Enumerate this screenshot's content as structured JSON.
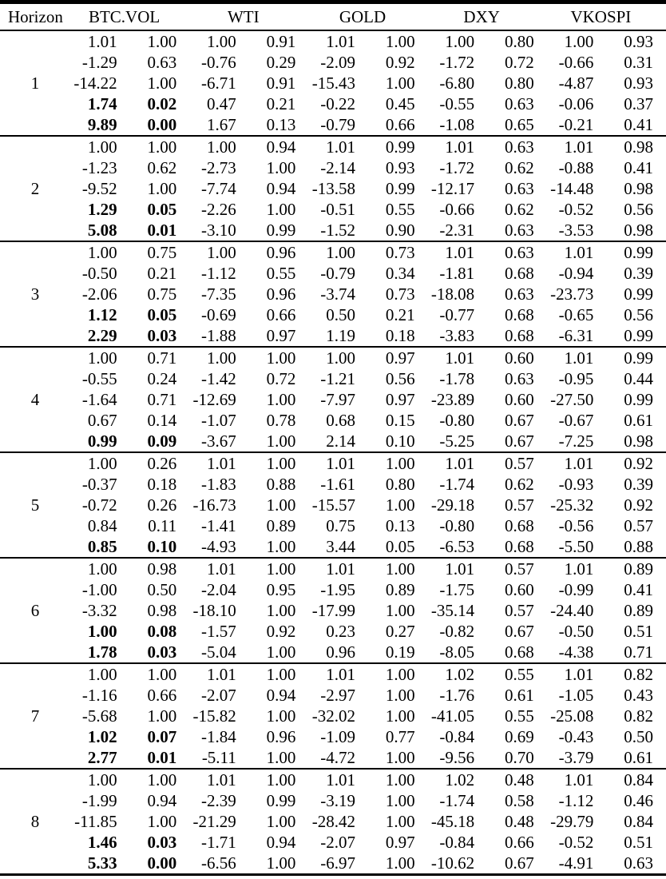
{
  "table": {
    "header": {
      "horizon": "Horizon",
      "series": [
        "BTC.VOL",
        "WTI",
        "GOLD",
        "DXY",
        "VKOSPI"
      ]
    },
    "groups": [
      {
        "horizon": "1",
        "rows": [
          {
            "values": [
              "1.01",
              "1.00",
              "1.00",
              "0.91",
              "1.01",
              "1.00",
              "1.00",
              "0.80",
              "1.00",
              "0.93"
            ],
            "bold": []
          },
          {
            "values": [
              "-1.29",
              "0.63",
              "-0.76",
              "0.29",
              "-2.09",
              "0.92",
              "-1.72",
              "0.72",
              "-0.66",
              "0.31"
            ],
            "bold": []
          },
          {
            "values": [
              "-14.22",
              "1.00",
              "-6.71",
              "0.91",
              "-15.43",
              "1.00",
              "-6.80",
              "0.80",
              "-4.87",
              "0.93"
            ],
            "bold": []
          },
          {
            "values": [
              "1.74",
              "0.02",
              "0.47",
              "0.21",
              "-0.22",
              "0.45",
              "-0.55",
              "0.63",
              "-0.06",
              "0.37"
            ],
            "bold": [
              0,
              1
            ]
          },
          {
            "values": [
              "9.89",
              "0.00",
              "1.67",
              "0.13",
              "-0.79",
              "0.66",
              "-1.08",
              "0.65",
              "-0.21",
              "0.41"
            ],
            "bold": [
              0,
              1
            ]
          }
        ]
      },
      {
        "horizon": "2",
        "rows": [
          {
            "values": [
              "1.00",
              "1.00",
              "1.00",
              "0.94",
              "1.01",
              "0.99",
              "1.01",
              "0.63",
              "1.01",
              "0.98"
            ],
            "bold": []
          },
          {
            "values": [
              "-1.23",
              "0.62",
              "-2.73",
              "1.00",
              "-2.14",
              "0.93",
              "-1.72",
              "0.62",
              "-0.88",
              "0.41"
            ],
            "bold": []
          },
          {
            "values": [
              "-9.52",
              "1.00",
              "-7.74",
              "0.94",
              "-13.58",
              "0.99",
              "-12.17",
              "0.63",
              "-14.48",
              "0.98"
            ],
            "bold": []
          },
          {
            "values": [
              "1.29",
              "0.05",
              "-2.26",
              "1.00",
              "-0.51",
              "0.55",
              "-0.66",
              "0.62",
              "-0.52",
              "0.56"
            ],
            "bold": [
              0,
              1
            ]
          },
          {
            "values": [
              "5.08",
              "0.01",
              "-3.10",
              "0.99",
              "-1.52",
              "0.90",
              "-2.31",
              "0.63",
              "-3.53",
              "0.98"
            ],
            "bold": [
              0,
              1
            ]
          }
        ]
      },
      {
        "horizon": "3",
        "rows": [
          {
            "values": [
              "1.00",
              "0.75",
              "1.00",
              "0.96",
              "1.00",
              "0.73",
              "1.01",
              "0.63",
              "1.01",
              "0.99"
            ],
            "bold": []
          },
          {
            "values": [
              "-0.50",
              "0.21",
              "-1.12",
              "0.55",
              "-0.79",
              "0.34",
              "-1.81",
              "0.68",
              "-0.94",
              "0.39"
            ],
            "bold": []
          },
          {
            "values": [
              "-2.06",
              "0.75",
              "-7.35",
              "0.96",
              "-3.74",
              "0.73",
              "-18.08",
              "0.63",
              "-23.73",
              "0.99"
            ],
            "bold": []
          },
          {
            "values": [
              "1.12",
              "0.05",
              "-0.69",
              "0.66",
              "0.50",
              "0.21",
              "-0.77",
              "0.68",
              "-0.65",
              "0.56"
            ],
            "bold": [
              0,
              1
            ]
          },
          {
            "values": [
              "2.29",
              "0.03",
              "-1.88",
              "0.97",
              "1.19",
              "0.18",
              "-3.83",
              "0.68",
              "-6.31",
              "0.99"
            ],
            "bold": [
              0,
              1
            ]
          }
        ]
      },
      {
        "horizon": "4",
        "rows": [
          {
            "values": [
              "1.00",
              "0.71",
              "1.00",
              "1.00",
              "1.00",
              "0.97",
              "1.01",
              "0.60",
              "1.01",
              "0.99"
            ],
            "bold": []
          },
          {
            "values": [
              "-0.55",
              "0.24",
              "-1.42",
              "0.72",
              "-1.21",
              "0.56",
              "-1.78",
              "0.63",
              "-0.95",
              "0.44"
            ],
            "bold": []
          },
          {
            "values": [
              "-1.64",
              "0.71",
              "-12.69",
              "1.00",
              "-7.97",
              "0.97",
              "-23.89",
              "0.60",
              "-27.50",
              "0.99"
            ],
            "bold": []
          },
          {
            "values": [
              "0.67",
              "0.14",
              "-1.07",
              "0.78",
              "0.68",
              "0.15",
              "-0.80",
              "0.67",
              "-0.67",
              "0.61"
            ],
            "bold": []
          },
          {
            "values": [
              "0.99",
              "0.09",
              "-3.67",
              "1.00",
              "2.14",
              "0.10",
              "-5.25",
              "0.67",
              "-7.25",
              "0.98"
            ],
            "bold": [
              0,
              1
            ]
          }
        ]
      },
      {
        "horizon": "5",
        "rows": [
          {
            "values": [
              "1.00",
              "0.26",
              "1.01",
              "1.00",
              "1.01",
              "1.00",
              "1.01",
              "0.57",
              "1.01",
              "0.92"
            ],
            "bold": []
          },
          {
            "values": [
              "-0.37",
              "0.18",
              "-1.83",
              "0.88",
              "-1.61",
              "0.80",
              "-1.74",
              "0.62",
              "-0.93",
              "0.39"
            ],
            "bold": []
          },
          {
            "values": [
              "-0.72",
              "0.26",
              "-16.73",
              "1.00",
              "-15.57",
              "1.00",
              "-29.18",
              "0.57",
              "-25.32",
              "0.92"
            ],
            "bold": []
          },
          {
            "values": [
              "0.84",
              "0.11",
              "-1.41",
              "0.89",
              "0.75",
              "0.13",
              "-0.80",
              "0.68",
              "-0.56",
              "0.57"
            ],
            "bold": []
          },
          {
            "values": [
              "0.85",
              "0.10",
              "-4.93",
              "1.00",
              "3.44",
              "0.05",
              "-6.53",
              "0.68",
              "-5.50",
              "0.88"
            ],
            "bold": [
              0,
              1
            ]
          }
        ]
      },
      {
        "horizon": "6",
        "rows": [
          {
            "values": [
              "1.00",
              "0.98",
              "1.01",
              "1.00",
              "1.01",
              "1.00",
              "1.01",
              "0.57",
              "1.01",
              "0.89"
            ],
            "bold": []
          },
          {
            "values": [
              "-1.00",
              "0.50",
              "-2.04",
              "0.95",
              "-1.95",
              "0.89",
              "-1.75",
              "0.60",
              "-0.99",
              "0.41"
            ],
            "bold": []
          },
          {
            "values": [
              "-3.32",
              "0.98",
              "-18.10",
              "1.00",
              "-17.99",
              "1.00",
              "-35.14",
              "0.57",
              "-24.40",
              "0.89"
            ],
            "bold": []
          },
          {
            "values": [
              "1.00",
              "0.08",
              "-1.57",
              "0.92",
              "0.23",
              "0.27",
              "-0.82",
              "0.67",
              "-0.50",
              "0.51"
            ],
            "bold": [
              0,
              1
            ]
          },
          {
            "values": [
              "1.78",
              "0.03",
              "-5.04",
              "1.00",
              "0.96",
              "0.19",
              "-8.05",
              "0.68",
              "-4.38",
              "0.71"
            ],
            "bold": [
              0,
              1
            ]
          }
        ]
      },
      {
        "horizon": "7",
        "rows": [
          {
            "values": [
              "1.00",
              "1.00",
              "1.01",
              "1.00",
              "1.01",
              "1.00",
              "1.02",
              "0.55",
              "1.01",
              "0.82"
            ],
            "bold": []
          },
          {
            "values": [
              "-1.16",
              "0.66",
              "-2.07",
              "0.94",
              "-2.97",
              "1.00",
              "-1.76",
              "0.61",
              "-1.05",
              "0.43"
            ],
            "bold": []
          },
          {
            "values": [
              "-5.68",
              "1.00",
              "-15.82",
              "1.00",
              "-32.02",
              "1.00",
              "-41.05",
              "0.55",
              "-25.08",
              "0.82"
            ],
            "bold": []
          },
          {
            "values": [
              "1.02",
              "0.07",
              "-1.84",
              "0.96",
              "-1.09",
              "0.77",
              "-0.84",
              "0.69",
              "-0.43",
              "0.50"
            ],
            "bold": [
              0,
              1
            ]
          },
          {
            "values": [
              "2.77",
              "0.01",
              "-5.11",
              "1.00",
              "-4.72",
              "1.00",
              "-9.56",
              "0.70",
              "-3.79",
              "0.61"
            ],
            "bold": [
              0,
              1
            ]
          }
        ]
      },
      {
        "horizon": "8",
        "rows": [
          {
            "values": [
              "1.00",
              "1.00",
              "1.01",
              "1.00",
              "1.01",
              "1.00",
              "1.02",
              "0.48",
              "1.01",
              "0.84"
            ],
            "bold": []
          },
          {
            "values": [
              "-1.99",
              "0.94",
              "-2.39",
              "0.99",
              "-3.19",
              "1.00",
              "-1.74",
              "0.58",
              "-1.12",
              "0.46"
            ],
            "bold": []
          },
          {
            "values": [
              "-11.85",
              "1.00",
              "-21.29",
              "1.00",
              "-28.42",
              "1.00",
              "-45.18",
              "0.48",
              "-29.79",
              "0.84"
            ],
            "bold": []
          },
          {
            "values": [
              "1.46",
              "0.03",
              "-1.71",
              "0.94",
              "-2.07",
              "0.97",
              "-0.84",
              "0.66",
              "-0.52",
              "0.51"
            ],
            "bold": [
              0,
              1
            ]
          },
          {
            "values": [
              "5.33",
              "0.00",
              "-6.56",
              "1.00",
              "-6.97",
              "1.00",
              "-10.62",
              "0.67",
              "-4.91",
              "0.63"
            ],
            "bold": [
              0,
              1
            ]
          }
        ]
      }
    ]
  }
}
